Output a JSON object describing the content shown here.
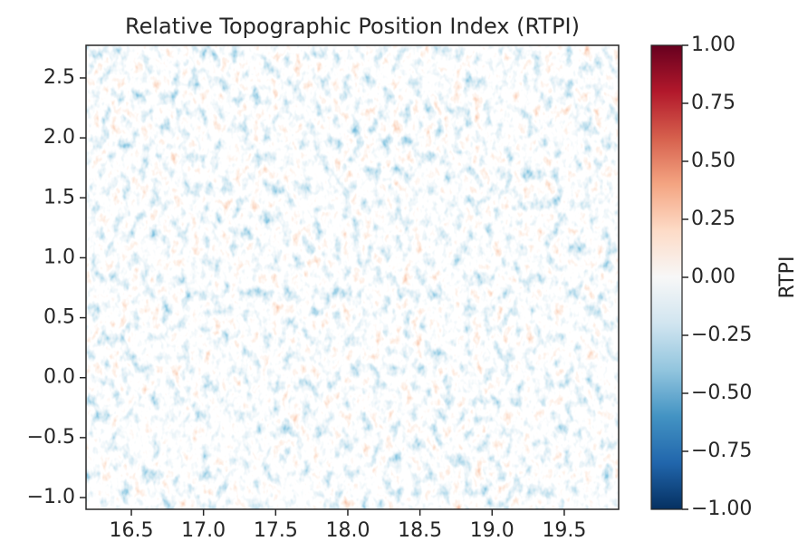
{
  "chart_data": {
    "type": "image",
    "title": "Relative Topographic Position Index (RTPI)",
    "xlim": [
      16.186,
      19.877
    ],
    "xticks": [
      16.5,
      {
        "value": 17.0,
        "label": "17.0"
      },
      17.5,
      {
        "value": 18.0,
        "label": "18.0"
      },
      18.5,
      {
        "value": 19.0,
        "label": "19.0"
      },
      19.5
    ],
    "ylim": [
      -1.098,
      2.772
    ],
    "yticks": [
      {
        "value": -1.0,
        "label": "−1.0"
      },
      {
        "value": -0.5,
        "label": "−0.5"
      },
      {
        "value": 0.0,
        "label": "0.0"
      },
      0.5,
      {
        "value": 1.0,
        "label": "1.0"
      },
      1.5,
      {
        "value": 2.0,
        "label": "2.0"
      },
      2.5
    ],
    "colorbar": {
      "label": "RTPI",
      "limits": [
        -1,
        1
      ],
      "ticks": [
        {
          "value": -1,
          "label": "−1.00"
        },
        {
          "value": -0.75,
          "label": "−0.75"
        },
        {
          "value": -0.5,
          "label": "−0.50"
        },
        {
          "value": -0.25,
          "label": "−0.25"
        },
        {
          "value": 0,
          "label": "0.00"
        },
        {
          "value": 0.25,
          "label": "0.25"
        },
        {
          "value": 0.5,
          "label": "0.50"
        },
        {
          "value": 0.75,
          "label": "0.75"
        },
        {
          "value": 1,
          "label": "1.00"
        }
      ],
      "colors": [
        "#053061",
        "#2166ac",
        "#4393c3",
        "#92c5de",
        "#d1e5f0",
        "#f7f7f7",
        "#fddbc7",
        "#f4a582",
        "#d6604d",
        "#b2182b",
        "#67001f"
      ]
    }
  }
}
